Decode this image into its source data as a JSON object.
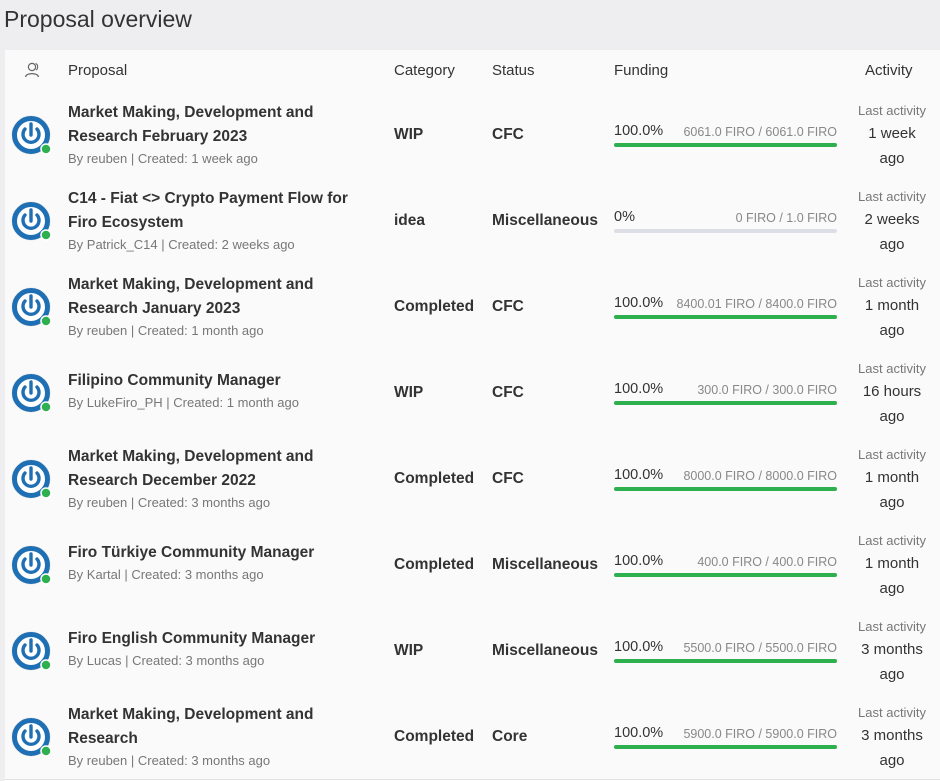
{
  "page": {
    "title": "Proposal overview"
  },
  "table": {
    "headers": {
      "proposal": "Proposal",
      "category": "Category",
      "status": "Status",
      "funding": "Funding",
      "activity": "Activity"
    },
    "header_icon": "users-icon",
    "activity_label": "Last activity",
    "rows": [
      {
        "title": "Market Making, Development and Research February 2023",
        "meta": "By reuben | Created: 1 week ago",
        "category": "WIP",
        "status": "CFC",
        "funding_pct": "100.0%",
        "funding_progress": 1.0,
        "funding_amount": "6061.0 FIRO / 6061.0 FIRO",
        "activity_line1": "1 week",
        "activity_line2": "ago"
      },
      {
        "title": "C14 - Fiat <> Crypto Payment Flow for Firo Ecosystem",
        "meta": "By Patrick_C14 | Created: 2 weeks ago",
        "category": "idea",
        "status": "Miscellaneous",
        "funding_pct": "0%",
        "funding_progress": 0.0,
        "funding_amount": "0 FIRO / 1.0 FIRO",
        "activity_line1": "2 weeks",
        "activity_line2": "ago"
      },
      {
        "title": "Market Making, Development and Research January 2023",
        "meta": "By reuben | Created: 1 month ago",
        "category": "Completed",
        "status": "CFC",
        "funding_pct": "100.0%",
        "funding_progress": 1.0,
        "funding_amount": "8400.01 FIRO / 8400.0 FIRO",
        "activity_line1": "1 month",
        "activity_line2": "ago"
      },
      {
        "title": "Filipino Community Manager",
        "meta": "By LukeFiro_PH | Created: 1 month ago",
        "category": "WIP",
        "status": "CFC",
        "funding_pct": "100.0%",
        "funding_progress": 1.0,
        "funding_amount": "300.0 FIRO / 300.0 FIRO",
        "activity_line1": "16 hours",
        "activity_line2": "ago"
      },
      {
        "title": "Market Making, Development and Research December 2022",
        "meta": "By reuben | Created: 3 months ago",
        "category": "Completed",
        "status": "CFC",
        "funding_pct": "100.0%",
        "funding_progress": 1.0,
        "funding_amount": "8000.0 FIRO / 8000.0 FIRO",
        "activity_line1": "1 month",
        "activity_line2": "ago"
      },
      {
        "title": "Firo Türkiye Community Manager",
        "meta": "By Kartal | Created: 3 months ago",
        "category": "Completed",
        "status": "Miscellaneous",
        "funding_pct": "100.0%",
        "funding_progress": 1.0,
        "funding_amount": "400.0 FIRO / 400.0 FIRO",
        "activity_line1": "1 month",
        "activity_line2": "ago"
      },
      {
        "title": "Firo English Community Manager",
        "meta": "By Lucas | Created: 3 months ago",
        "category": "WIP",
        "status": "Miscellaneous",
        "funding_pct": "100.0%",
        "funding_progress": 1.0,
        "funding_amount": "5500.0 FIRO / 5500.0 FIRO",
        "activity_line1": "3 months",
        "activity_line2": "ago"
      },
      {
        "title": "Market Making, Development and Research",
        "meta": "By reuben | Created: 3 months ago",
        "category": "Completed",
        "status": "Core",
        "funding_pct": "100.0%",
        "funding_progress": 1.0,
        "funding_amount": "5900.0 FIRO / 5900.0 FIRO",
        "activity_line1": "3 months",
        "activity_line2": "ago"
      }
    ]
  },
  "colors": {
    "accent_blue": "#1f6fb5",
    "progress_green": "#2fb04e",
    "online_dot": "#2fb04e",
    "track": "#dedee6"
  }
}
